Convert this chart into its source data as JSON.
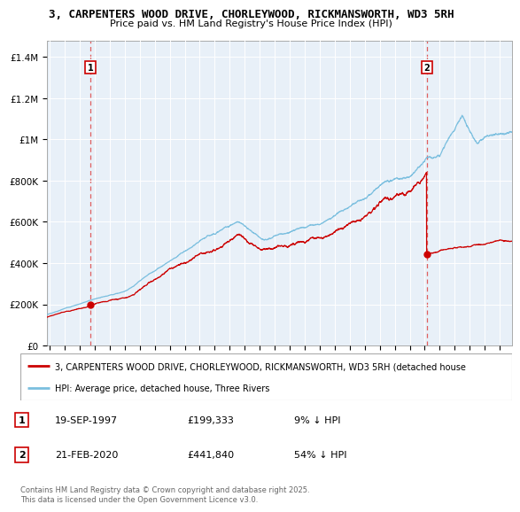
{
  "title_line1": "3, CARPENTERS WOOD DRIVE, CHORLEYWOOD, RICKMANSWORTH, WD3 5RH",
  "title_line2": "Price paid vs. HM Land Registry's House Price Index (HPI)",
  "ylabel_ticks": [
    "£0",
    "£200K",
    "£400K",
    "£600K",
    "£800K",
    "£1M",
    "£1.2M",
    "£1.4M"
  ],
  "ytick_values": [
    0,
    200000,
    400000,
    600000,
    800000,
    1000000,
    1200000,
    1400000
  ],
  "ylim": [
    0,
    1480000
  ],
  "xlim_start": 1994.8,
  "xlim_end": 2025.8,
  "hpi_color": "#7bbfdf",
  "price_color": "#cc0000",
  "marker1_date": 1997.72,
  "marker1_price": 199333,
  "marker2_date": 2020.13,
  "marker2_price": 441840,
  "legend_line1": "3, CARPENTERS WOOD DRIVE, CHORLEYWOOD, RICKMANSWORTH, WD3 5RH (detached house",
  "legend_line2": "HPI: Average price, detached house, Three Rivers",
  "footnote": "Contains HM Land Registry data © Crown copyright and database right 2025.\nThis data is licensed under the Open Government Licence v3.0.",
  "background_color": "#ffffff",
  "plot_bg_color": "#e8f0f8",
  "grid_color": "#ffffff",
  "dashed_line_color": "#e06060"
}
